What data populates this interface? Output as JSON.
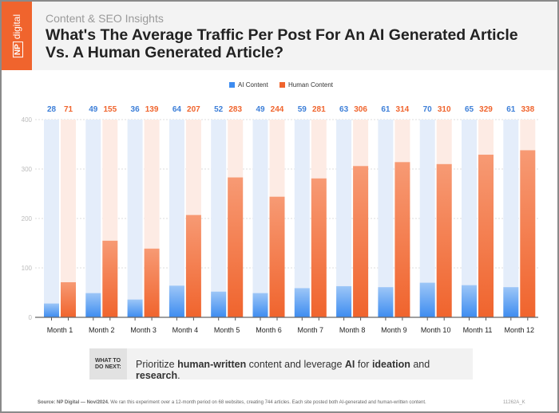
{
  "header": {
    "logo": "NP digital",
    "subtitle": "Content & SEO Insights",
    "title_line1": "What's The Average Traffic Per Post For An AI Generated Article",
    "title_line2": "Vs. A Human Generated Article?"
  },
  "chart_data": {
    "type": "bar",
    "categories": [
      "Month 1",
      "Month 2",
      "Month 3",
      "Month 4",
      "Month 5",
      "Month 6",
      "Month 7",
      "Month 8",
      "Month 9",
      "Month 10",
      "Month 11",
      "Month 12"
    ],
    "series": [
      {
        "name": "AI Content",
        "color": "#3d8cf0",
        "values": [
          28,
          49,
          36,
          64,
          52,
          49,
          59,
          63,
          61,
          70,
          65,
          61
        ]
      },
      {
        "name": "Human Content",
        "color": "#f0642d",
        "values": [
          71,
          155,
          139,
          207,
          283,
          244,
          281,
          306,
          314,
          310,
          329,
          338
        ]
      }
    ],
    "ylim": [
      0,
      400
    ],
    "yticks": [
      "0",
      "100",
      "200",
      "300",
      "400"
    ],
    "grid": true,
    "legend": "top-center"
  },
  "next": {
    "label1": "WHAT TO",
    "label2": "DO NEXT:",
    "t1": "Prioritize ",
    "b1": "human-written",
    "t2": " content and leverage ",
    "b2": "AI",
    "t3": " for ",
    "b3": "ideation",
    "t4": " and ",
    "b4": "research",
    "t5": "."
  },
  "source": {
    "label": "Source:",
    "org": "NP Digital — Nov/2024.",
    "text": " We ran this experiment over a 12-month period on 68 websites, creating 744 articles. Each site posted both AI-generated and human-written content.",
    "code": "11262A_K"
  }
}
